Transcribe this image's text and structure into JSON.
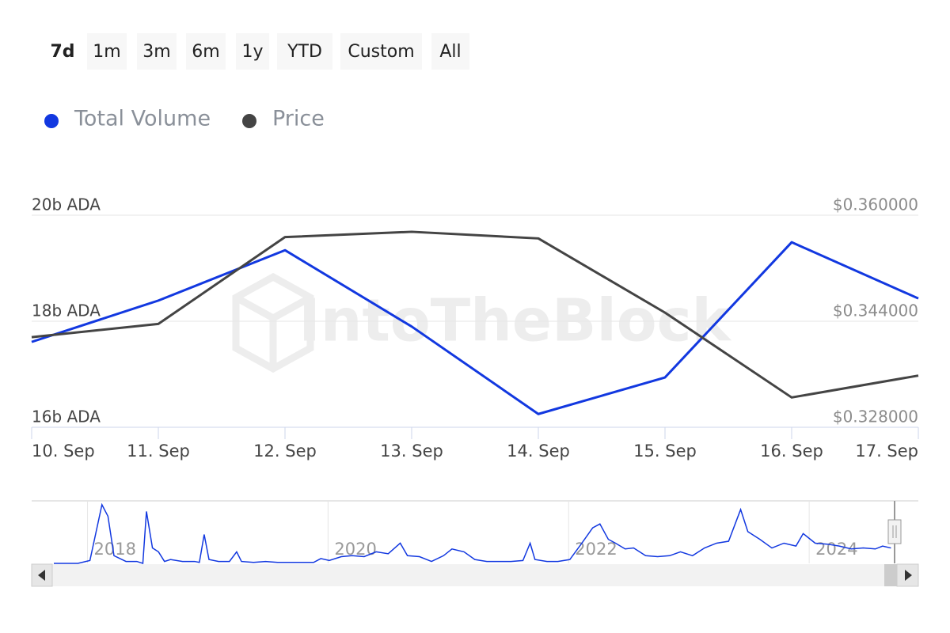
{
  "range_buttons": [
    "7d",
    "1m",
    "3m",
    "6m",
    "1y",
    "YTD",
    "Custom",
    "All"
  ],
  "selected_button": "7d",
  "chart_data": {
    "type": "line",
    "watermark": "IntoTheBlock",
    "categories": [
      "10. Sep",
      "11. Sep",
      "12. Sep",
      "13. Sep",
      "14. Sep",
      "15. Sep",
      "16. Sep",
      "17. Sep"
    ],
    "series": [
      {
        "name": "Total Volume",
        "color": "#1238e0",
        "axis": "y",
        "values": [
          17.61,
          18.39,
          19.34,
          17.9,
          16.25,
          16.94,
          19.49,
          18.43
        ]
      },
      {
        "name": "Price",
        "color": "#444444",
        "axis": "y2",
        "values": [
          0.3416,
          0.3436,
          0.3567,
          0.3575,
          0.3565,
          0.3453,
          0.3325,
          0.3358
        ]
      }
    ],
    "ylim": [
      16,
      20
    ],
    "yticks": [
      {
        "value": 16,
        "label": "16b ADA"
      },
      {
        "value": 18,
        "label": "18b ADA"
      },
      {
        "value": 20,
        "label": "20b ADA"
      }
    ],
    "y2lim": [
      0.328,
      0.36
    ],
    "y2ticks": [
      {
        "value": 0.328,
        "label": "$0.328000"
      },
      {
        "value": 0.344,
        "label": "$0.344000"
      },
      {
        "value": 0.36,
        "label": "$0.360000"
      }
    ],
    "grid": true,
    "navigator": {
      "color": "#1238e0",
      "xlim": [
        2017.72,
        2024.71
      ],
      "xticks": [
        2018,
        2020,
        2022,
        2024
      ],
      "ylim": [
        0,
        65
      ],
      "x": [
        2017.72,
        2017.82,
        2017.92,
        2018.02,
        2018.12,
        2018.17,
        2018.22,
        2018.32,
        2018.41,
        2018.46,
        2018.49,
        2018.54,
        2018.59,
        2018.64,
        2018.69,
        2018.79,
        2018.89,
        2018.93,
        2018.97,
        2019.01,
        2019.09,
        2019.18,
        2019.24,
        2019.28,
        2019.38,
        2019.48,
        2019.58,
        2019.68,
        2019.78,
        2019.88,
        2019.94,
        2020.01,
        2020.11,
        2020.2,
        2020.3,
        2020.4,
        2020.5,
        2020.6,
        2020.66,
        2020.76,
        2020.86,
        2020.96,
        2021.03,
        2021.13,
        2021.22,
        2021.32,
        2021.42,
        2021.52,
        2021.62,
        2021.68,
        2021.72,
        2021.82,
        2021.91,
        2022.01,
        2022.11,
        2022.2,
        2022.26,
        2022.33,
        2022.39,
        2022.47,
        2022.54,
        2022.64,
        2022.74,
        2022.84,
        2022.93,
        2023.03,
        2023.13,
        2023.23,
        2023.33,
        2023.43,
        2023.49,
        2023.59,
        2023.69,
        2023.79,
        2023.89,
        2023.95,
        2024.05,
        2024.15,
        2024.25,
        2024.35,
        2024.45,
        2024.55,
        2024.61,
        2024.68
      ],
      "values": [
        0,
        0,
        0,
        3,
        61,
        49,
        8,
        2,
        2,
        0,
        54,
        16,
        12,
        2,
        4,
        2,
        2,
        1,
        30,
        4,
        2,
        2,
        12,
        2,
        1,
        2,
        1,
        1,
        1,
        1,
        5,
        3,
        7,
        8,
        7,
        12,
        10,
        21,
        8,
        7,
        2,
        8,
        15,
        12,
        4,
        2,
        2,
        2,
        3,
        21,
        4,
        2,
        2,
        4,
        21,
        37,
        41,
        25,
        21,
        15,
        16,
        8,
        7,
        8,
        12,
        8,
        16,
        21,
        23,
        56,
        33,
        25,
        16,
        21,
        18,
        31,
        21,
        20,
        18,
        15,
        16,
        15,
        18,
        16
      ]
    }
  }
}
